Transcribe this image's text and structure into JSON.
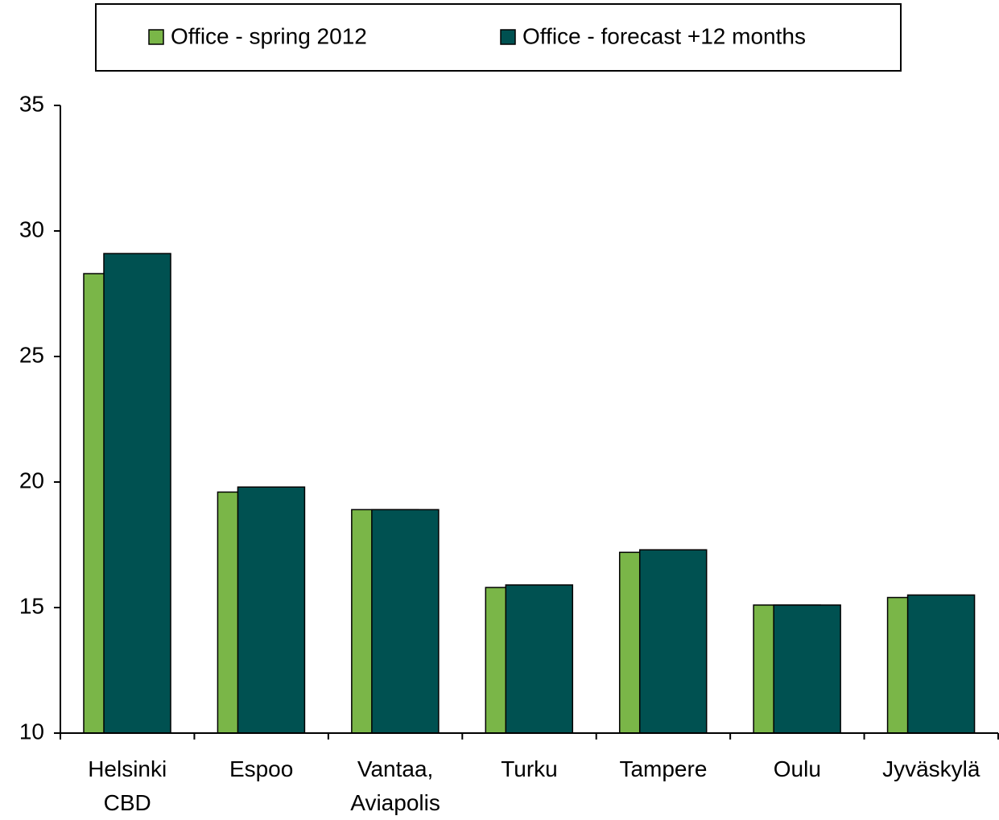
{
  "chart_data": {
    "type": "bar",
    "categories": [
      "Helsinki\nCBD",
      "Espoo",
      "Vantaa,\nAviapolis",
      "Turku",
      "Tampere",
      "Oulu",
      "Jyväskylä"
    ],
    "series": [
      {
        "name": "Office - spring 2012",
        "color": "#7ab648",
        "values": [
          28.3,
          19.6,
          18.9,
          15.8,
          17.2,
          15.1,
          15.4
        ]
      },
      {
        "name": "Office - forecast +12 months",
        "color": "#005151",
        "values": [
          29.1,
          19.8,
          18.9,
          15.9,
          17.3,
          15.1,
          15.5
        ]
      }
    ],
    "ylim": [
      10,
      35
    ],
    "yticks": [
      10,
      15,
      20,
      25,
      30,
      35
    ],
    "grid": false,
    "legend": "top"
  }
}
